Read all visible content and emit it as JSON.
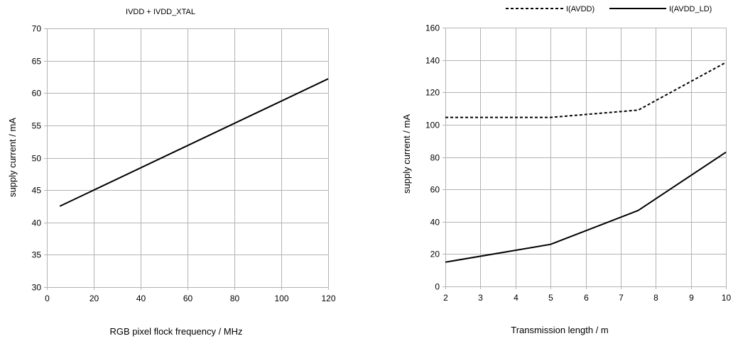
{
  "chart_data": [
    {
      "type": "line",
      "title": "IVDD + IVDD_XTAL",
      "xlabel": "RGB pixel flock frequency / MHz",
      "ylabel": "supply current / mA",
      "xlim": [
        0,
        120
      ],
      "ylim": [
        30,
        70
      ],
      "x_ticks": [
        0,
        20,
        40,
        60,
        80,
        100,
        120
      ],
      "y_ticks": [
        30,
        35,
        40,
        45,
        50,
        55,
        60,
        65,
        70
      ],
      "grid": true,
      "legend": "none",
      "series": [
        {
          "style": "solid",
          "color": "#000000",
          "x": [
            5.5,
            120
          ],
          "y": [
            42.5,
            62.2
          ]
        }
      ]
    },
    {
      "type": "line",
      "title": "",
      "xlabel": "Transmission length / m",
      "ylabel": "supply current / mA",
      "xlim": [
        2,
        10
      ],
      "ylim": [
        0,
        160
      ],
      "x_ticks": [
        2,
        3,
        4,
        5,
        6,
        7,
        8,
        9,
        10
      ],
      "y_ticks": [
        0,
        20,
        40,
        60,
        80,
        100,
        120,
        140,
        160
      ],
      "grid": true,
      "legend": "top",
      "series": [
        {
          "name": "I(AVDD)",
          "style": "dashed",
          "color": "#000000",
          "x": [
            2,
            5,
            7.5,
            10
          ],
          "y": [
            104.5,
            104.5,
            109,
            138.5
          ]
        },
        {
          "name": "I(AVDD_LD)",
          "style": "solid",
          "color": "#000000",
          "x": [
            2,
            5,
            7.5,
            10
          ],
          "y": [
            15,
            26,
            47,
            83
          ]
        }
      ]
    }
  ]
}
